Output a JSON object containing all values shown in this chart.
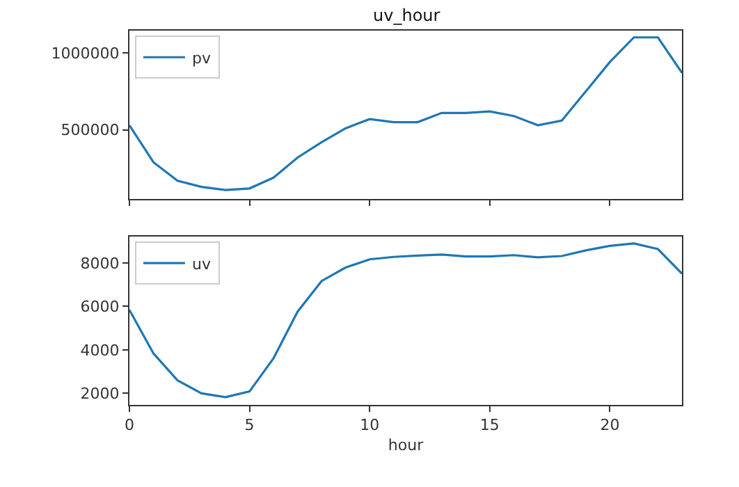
{
  "chart_data": [
    {
      "type": "line",
      "title": "uv_hour",
      "x": [
        0,
        1,
        2,
        3,
        4,
        5,
        6,
        7,
        8,
        9,
        10,
        11,
        12,
        13,
        14,
        15,
        16,
        17,
        18,
        19,
        20,
        21,
        22,
        23
      ],
      "series": [
        {
          "name": "pv",
          "color": "#1f77b4",
          "values": [
            530000,
            290000,
            170000,
            130000,
            110000,
            120000,
            190000,
            320000,
            420000,
            510000,
            570000,
            550000,
            550000,
            610000,
            610000,
            620000,
            590000,
            530000,
            560000,
            750000,
            940000,
            1100000,
            1100000,
            870000
          ]
        }
      ],
      "xlim": [
        0,
        23
      ],
      "xticks": [
        {
          "value": 0,
          "label": null
        },
        {
          "value": 5,
          "label": null
        },
        {
          "value": 10,
          "label": null
        },
        {
          "value": 15,
          "label": null
        },
        {
          "value": 20,
          "label": null
        }
      ],
      "ylim": [
        51000,
        1144000
      ],
      "yticks": [
        500000,
        1000000
      ],
      "tick_labels": "y",
      "legend": "top left"
    },
    {
      "type": "line",
      "xlabel": "hour",
      "x": [
        0,
        1,
        2,
        3,
        4,
        5,
        6,
        7,
        8,
        9,
        10,
        11,
        12,
        13,
        14,
        15,
        16,
        17,
        18,
        19,
        20,
        21,
        22,
        23
      ],
      "series": [
        {
          "name": "uv",
          "color": "#1f77b4",
          "values": [
            5840,
            3840,
            2600,
            2000,
            1830,
            2090,
            3620,
            5760,
            7170,
            7790,
            8170,
            8280,
            8340,
            8390,
            8300,
            8300,
            8360,
            8260,
            8320,
            8580,
            8790,
            8900,
            8640,
            7510
          ]
        }
      ],
      "xlim": [
        0,
        23
      ],
      "xticks": [
        0,
        5,
        10,
        15,
        20
      ],
      "ylim": [
        1470,
        9220
      ],
      "yticks": [
        2000,
        4000,
        6000,
        8000
      ],
      "legend": "top left"
    }
  ]
}
